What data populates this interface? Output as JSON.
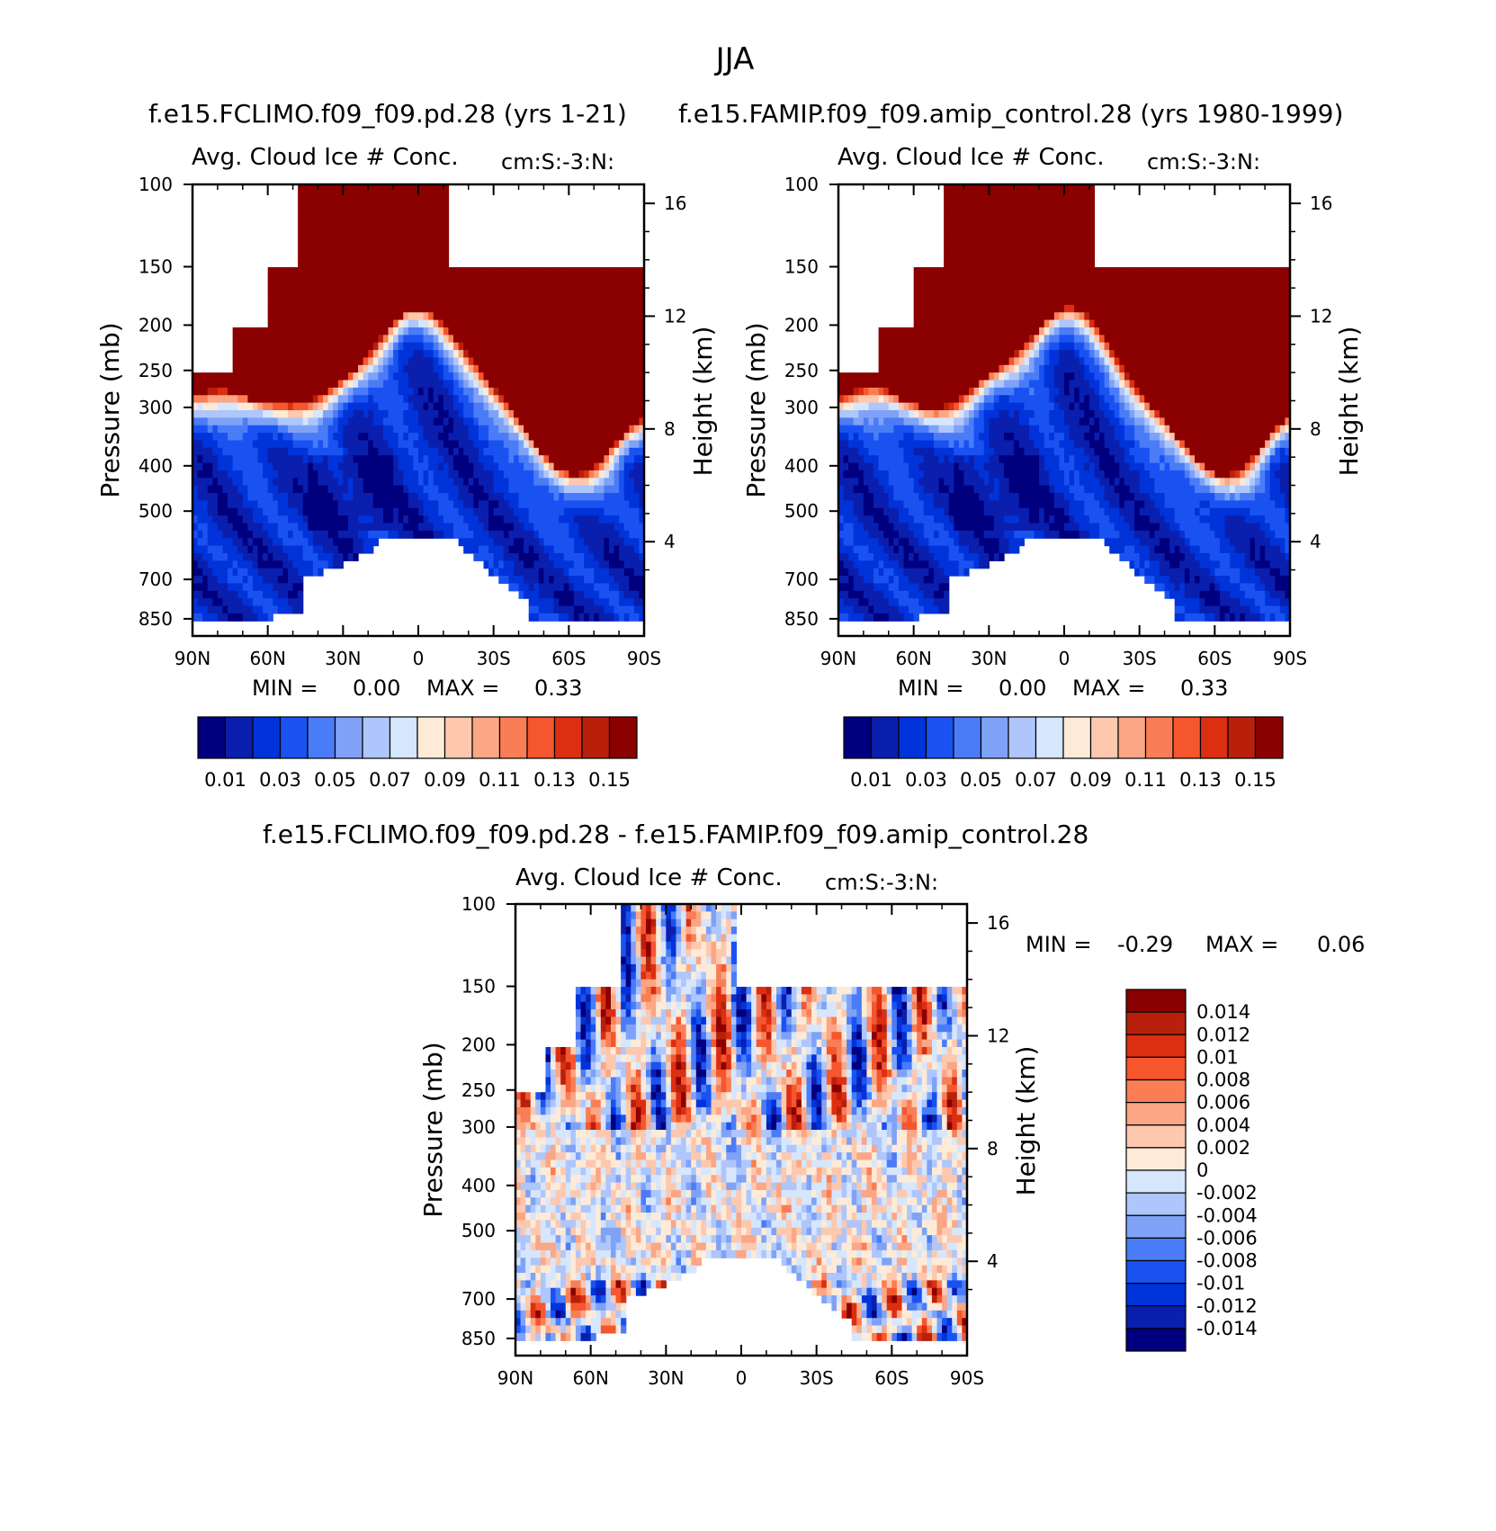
{
  "page_title": "JJA",
  "colors": {
    "abs_scale": [
      "#00007f",
      "#0a1fae",
      "#0033d9",
      "#1a52f2",
      "#4a7cf7",
      "#7fa2f7",
      "#aec6fb",
      "#d6e6fd",
      "#fdebd8",
      "#fdc8ae",
      "#fba685",
      "#f97e55",
      "#f5562e",
      "#dc2e10",
      "#b8200c",
      "#8b0000"
    ],
    "diff_scale": [
      "#00007f",
      "#0a1fae",
      "#0033d9",
      "#1a52f2",
      "#4a7cf7",
      "#7fa2f7",
      "#aec6fb",
      "#d6e6fd",
      "#fdebd8",
      "#fdc8ae",
      "#fba685",
      "#f97e55",
      "#f5562e",
      "#dc2e10",
      "#b8200c",
      "#8b0000"
    ]
  },
  "chart_data": [
    {
      "id": "panel-a",
      "type": "heatmap",
      "case_title": "f.e15.FCLIMO.f09_f09.pd.28 (yrs 1-21)",
      "title": "Avg. Cloud Ice # Conc.",
      "units": "cm:S:-3:N:",
      "xlabel": "",
      "ylabel": "Pressure (mb)",
      "ylabel_right": "Height (km)",
      "x_ticks": [
        "90N",
        "60N",
        "30N",
        "0",
        "30S",
        "60S",
        "90S"
      ],
      "y_ticks": [
        "100",
        "150",
        "200",
        "250",
        "300",
        "400",
        "500",
        "700",
        "850"
      ],
      "y_right_ticks": [
        "16",
        "12",
        "8",
        "4"
      ],
      "min_label": "MIN =",
      "min_value": "0.00",
      "max_label": "MAX =",
      "max_value": "0.33",
      "colorbar_labels": [
        "0.01",
        "0.03",
        "0.05",
        "0.07",
        "0.09",
        "0.11",
        "0.13",
        "0.15"
      ],
      "range": [
        0,
        0.33
      ]
    },
    {
      "id": "panel-b",
      "type": "heatmap",
      "case_title": "f.e15.FAMIP.f09_f09.amip_control.28 (yrs 1980-1999)",
      "title": "Avg. Cloud Ice # Conc.",
      "units": "cm:S:-3:N:",
      "xlabel": "",
      "ylabel": "Pressure (mb)",
      "ylabel_right": "Height (km)",
      "x_ticks": [
        "90N",
        "60N",
        "30N",
        "0",
        "30S",
        "60S",
        "90S"
      ],
      "y_ticks": [
        "100",
        "150",
        "200",
        "250",
        "300",
        "400",
        "500",
        "700",
        "850"
      ],
      "y_right_ticks": [
        "16",
        "12",
        "8",
        "4"
      ],
      "min_label": "MIN =",
      "min_value": "0.00",
      "max_label": "MAX =",
      "max_value": "0.33",
      "colorbar_labels": [
        "0.01",
        "0.03",
        "0.05",
        "0.07",
        "0.09",
        "0.11",
        "0.13",
        "0.15"
      ],
      "range": [
        0,
        0.33
      ]
    },
    {
      "id": "panel-diff",
      "type": "heatmap",
      "case_title": "f.e15.FCLIMO.f09_f09.pd.28 - f.e15.FAMIP.f09_f09.amip_control.28",
      "title": "Avg. Cloud Ice # Conc.",
      "units": "cm:S:-3:N:",
      "xlabel": "",
      "ylabel": "Pressure (mb)",
      "ylabel_right": "Height (km)",
      "x_ticks": [
        "90N",
        "60N",
        "30N",
        "0",
        "30S",
        "60S",
        "90S"
      ],
      "y_ticks": [
        "100",
        "150",
        "200",
        "250",
        "300",
        "400",
        "500",
        "700",
        "850"
      ],
      "y_right_ticks": [
        "16",
        "12",
        "8",
        "4"
      ],
      "min_label": "MIN =",
      "min_value": "-0.29",
      "max_label": "MAX =",
      "max_value": "0.06",
      "colorbar_labels": [
        "0.014",
        "0.012",
        "0.01",
        "0.008",
        "0.006",
        "0.004",
        "0.002",
        "0",
        "-0.002",
        "-0.004",
        "-0.006",
        "-0.008",
        "-0.01",
        "-0.012",
        "-0.014"
      ],
      "range": [
        -0.29,
        0.06
      ]
    }
  ]
}
